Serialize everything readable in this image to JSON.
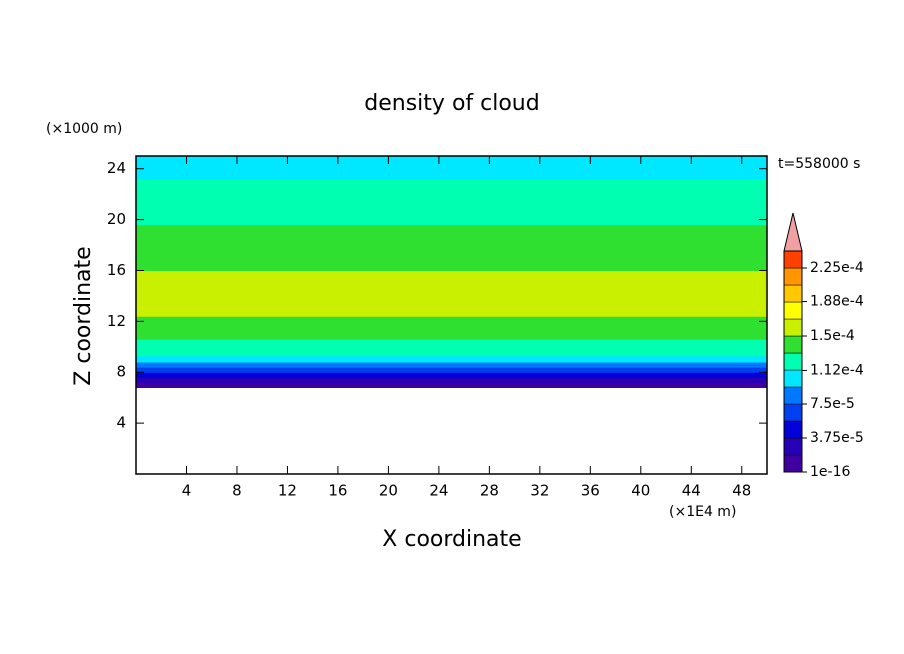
{
  "chart_data": {
    "type": "contour",
    "title": "density of cloud",
    "ylabel_unit": "(×1000 m)",
    "xlabel_unit": "(×1E4 m)",
    "time_label": "t=558000 s",
    "xlabel": "X coordinate",
    "ylabel": "Z coordinate",
    "xlim": [
      0,
      50
    ],
    "ylim": [
      0,
      25
    ],
    "xticks": [
      4,
      8,
      12,
      16,
      20,
      24,
      28,
      32,
      36,
      40,
      44,
      48
    ],
    "yticks": [
      4,
      8,
      12,
      16,
      20,
      24
    ],
    "profile": {
      "z": [
        6.8,
        7.2,
        7.6,
        8.0,
        8.4,
        8.8,
        9.3,
        10.0,
        10.6,
        11.6,
        12.4,
        13.0,
        16.0,
        16.8,
        17.6,
        18.4,
        19.6,
        20.4,
        21.2,
        22.0,
        23.2,
        24.2,
        25
      ],
      "values": [
        1e-05,
        2.5e-05,
        4.5e-05,
        6.5e-05,
        8.5e-05,
        0.0001,
        0.00012,
        0.000125,
        0.00014,
        0.000145,
        0.000152,
        0.000155,
        0.000145,
        0.00014,
        0.000138,
        0.00014,
        0.00013,
        0.000125,
        0.00012,
        0.000115,
        0.00011,
        0.000105,
        null
      ]
    },
    "colorbar": {
      "levels": [
        1e-16,
        1.875e-05,
        3.75e-05,
        5.625e-05,
        7.5e-05,
        9.375e-05,
        0.0001125,
        0.00013125,
        0.00015,
        0.00016875,
        0.0001875,
        0.00020625,
        0.000225,
        0.00024375
      ],
      "colors": [
        "#4000a0",
        "#2800b8",
        "#0000d8",
        "#0040f0",
        "#0078ff",
        "#00e8ff",
        "#00ffb0",
        "#30e030",
        "#c8f000",
        "#ffff00",
        "#ffc800",
        "#ff9600",
        "#ff4000"
      ],
      "over_color": "#f0a0a0",
      "ticks": [
        {
          "value": 1e-16,
          "label": "1e-16"
        },
        {
          "value": 3.75e-05,
          "label": "3.75e-5"
        },
        {
          "value": 7.5e-05,
          "label": "7.5e-5"
        },
        {
          "value": 0.000112,
          "label": "1.12e-4"
        },
        {
          "value": 0.00015,
          "label": "1.5e-4"
        },
        {
          "value": 0.000188,
          "label": "1.88e-4"
        },
        {
          "value": 0.000225,
          "label": "2.25e-4"
        }
      ]
    }
  }
}
